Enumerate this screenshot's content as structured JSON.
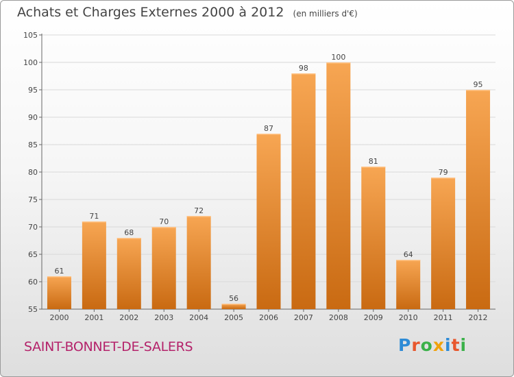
{
  "header": {
    "title": "Achats et Charges Externes 2000 à 2012",
    "unit": "(en milliers d'€)"
  },
  "footer": {
    "commune": "SAINT-BONNET-DE-SALERS",
    "brand": "Proxiti",
    "brand_colors": [
      "#2e8bd6",
      "#e8572d",
      "#3bb14a",
      "#f0a20c",
      "#2e8bd6",
      "#e8572d",
      "#3bb14a"
    ]
  },
  "colors": {
    "bar_top": "#f7a653",
    "bar_bottom": "#c96a12",
    "grid": "#d9d9d9",
    "axis": "#666666",
    "label": "#444444"
  },
  "chart_data": {
    "type": "bar",
    "title": "Achats et Charges Externes 2000 à 2012",
    "subtitle": "(en milliers d'€)",
    "categories": [
      "2000",
      "2001",
      "2002",
      "2003",
      "2004",
      "2005",
      "2006",
      "2007",
      "2008",
      "2009",
      "2010",
      "2011",
      "2012"
    ],
    "values": [
      61,
      71,
      68,
      70,
      72,
      56,
      87,
      98,
      100,
      81,
      64,
      79,
      95
    ],
    "ylim": [
      55,
      105
    ],
    "yticks": [
      55,
      60,
      65,
      70,
      75,
      80,
      85,
      90,
      95,
      100,
      105
    ],
    "grid": true,
    "data_labels": true
  }
}
